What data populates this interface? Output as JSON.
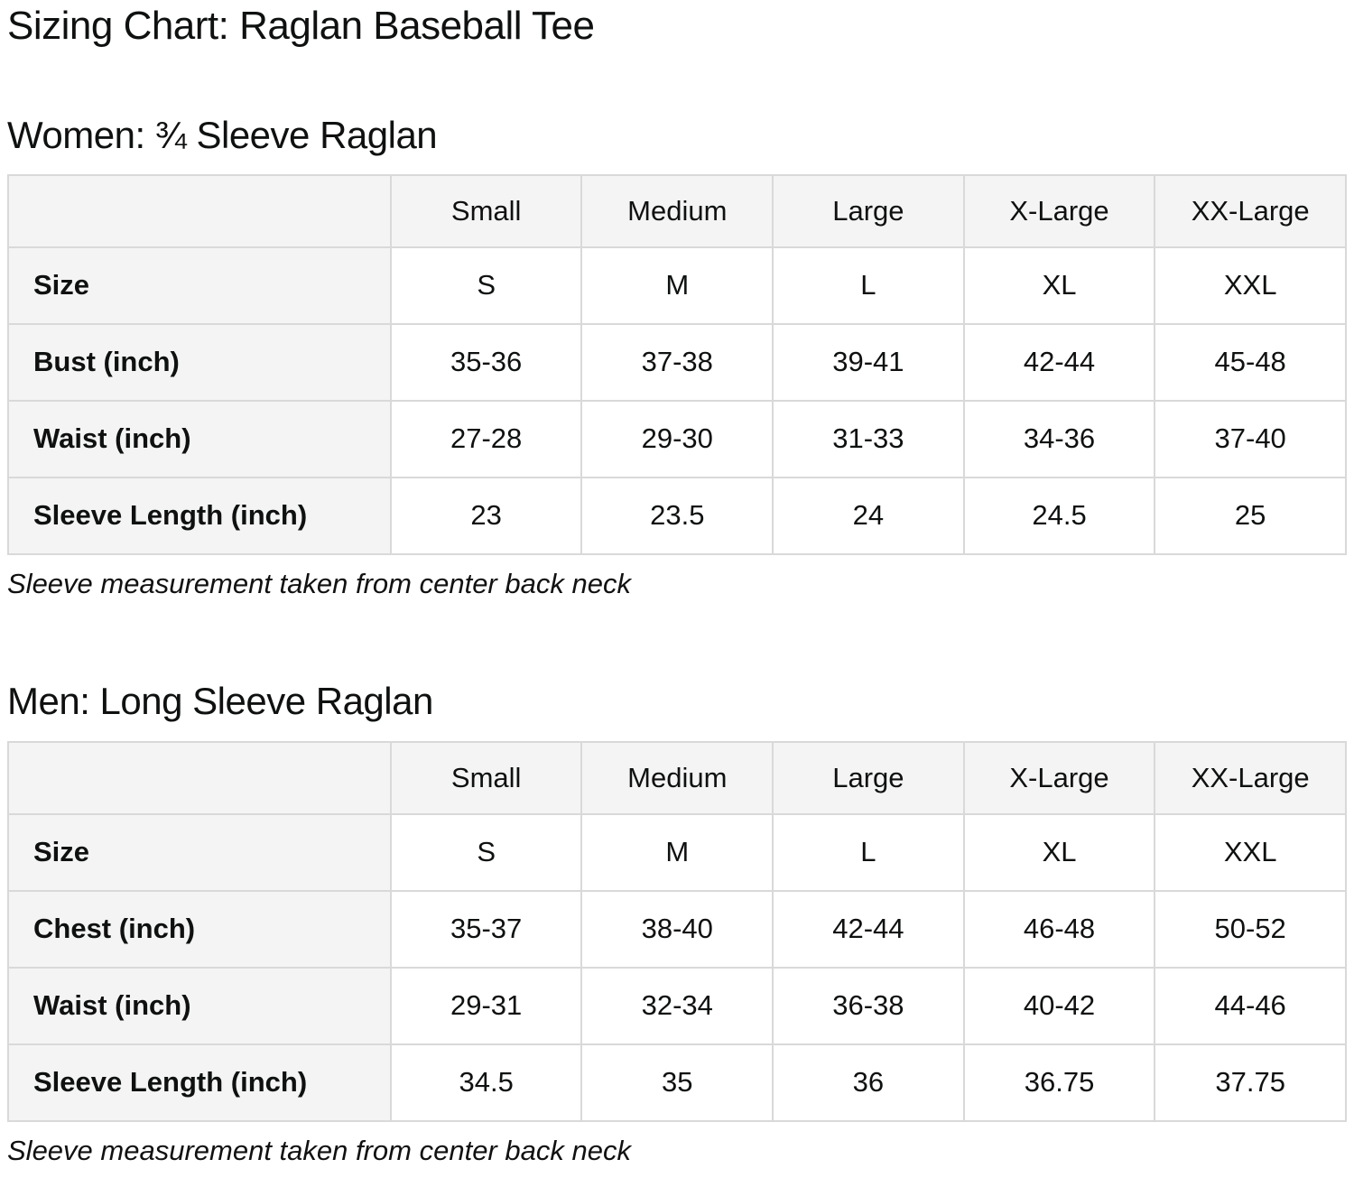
{
  "page": {
    "title": "Sizing Chart: Raglan Baseball Tee"
  },
  "colors": {
    "header_cell_bg": "#f4f4f4",
    "label_cell_bg": "#f4f4f4",
    "data_cell_bg": "#ffffff",
    "border": "#d9d9d9",
    "text": "#0f1111"
  },
  "sections": [
    {
      "heading": "Women: ¾ Sleeve Raglan",
      "note": "Sleeve measurement taken from center back neck",
      "table": {
        "column_headers": [
          "",
          "Small",
          "Medium",
          "Large",
          "X-Large",
          "XX-Large"
        ],
        "rows": [
          {
            "label": "Size",
            "values": [
              "S",
              "M",
              "L",
              "XL",
              "XXL"
            ]
          },
          {
            "label": "Bust (inch)",
            "values": [
              "35-36",
              "37-38",
              "39-41",
              "42-44",
              "45-48"
            ]
          },
          {
            "label": "Waist (inch)",
            "values": [
              "27-28",
              "29-30",
              "31-33",
              "34-36",
              "37-40"
            ]
          },
          {
            "label": "Sleeve Length (inch)",
            "values": [
              "23",
              "23.5",
              "24",
              "24.5",
              "25"
            ]
          }
        ]
      }
    },
    {
      "heading": "Men: Long Sleeve Raglan",
      "note": "Sleeve measurement taken from center back neck",
      "table": {
        "column_headers": [
          "",
          "Small",
          "Medium",
          "Large",
          "X-Large",
          "XX-Large"
        ],
        "rows": [
          {
            "label": "Size",
            "values": [
              "S",
              "M",
              "L",
              "XL",
              "XXL"
            ]
          },
          {
            "label": "Chest (inch)",
            "values": [
              "35-37",
              "38-40",
              "42-44",
              "46-48",
              "50-52"
            ]
          },
          {
            "label": "Waist (inch)",
            "values": [
              "29-31",
              "32-34",
              "36-38",
              "40-42",
              "44-46"
            ]
          },
          {
            "label": "Sleeve Length (inch)",
            "values": [
              "34.5",
              "35",
              "36",
              "36.75",
              "37.75"
            ]
          }
        ]
      }
    }
  ]
}
